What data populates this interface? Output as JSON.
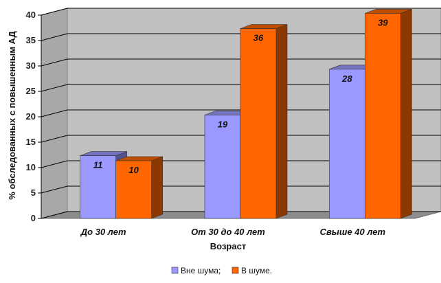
{
  "chart_data": {
    "type": "bar",
    "categories": [
      "До 30 лет",
      "От 30 до 40 лет",
      "Свыше 40 лет"
    ],
    "series": [
      {
        "name": "Вне шума;",
        "values": [
          11,
          19,
          28
        ],
        "color": "#9999ff"
      },
      {
        "name": "В шуме.",
        "values": [
          10,
          36,
          39
        ],
        "color": "#ff6600"
      }
    ],
    "xlabel": "Возраст",
    "ylabel": "% обследованных с повышенным АД",
    "ylim": [
      0,
      40
    ],
    "yticks": [
      "0",
      "5",
      "10",
      "15",
      "20",
      "25",
      "30",
      "35",
      "40"
    ],
    "grid": true,
    "legend_position": "bottom"
  }
}
